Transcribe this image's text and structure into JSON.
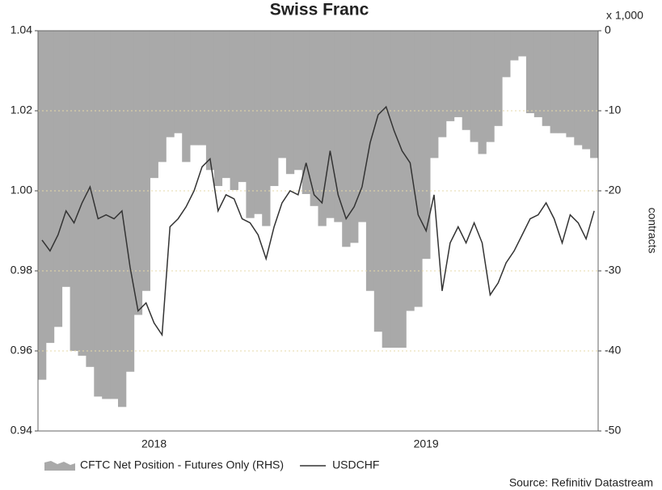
{
  "chart_data": {
    "type": "combo",
    "title": "Swiss Franc",
    "y2unit": "x 1,000",
    "y2label": "contracts",
    "source": "Source: Refinitiv Datastream",
    "categories": [
      null,
      null,
      null,
      null,
      null,
      null,
      null,
      null,
      null,
      null,
      null,
      null,
      null,
      null,
      "2018",
      null,
      null,
      null,
      null,
      null,
      null,
      null,
      null,
      null,
      null,
      null,
      null,
      null,
      null,
      null,
      null,
      null,
      null,
      null,
      null,
      null,
      null,
      null,
      null,
      null,
      null,
      null,
      null,
      null,
      null,
      null,
      null,
      null,
      "2019",
      null,
      null,
      null,
      null,
      null,
      null,
      null,
      null,
      null,
      null,
      null,
      null,
      null,
      null,
      null,
      null,
      null,
      null,
      null,
      null,
      null
    ],
    "ylim": [
      0.94,
      1.04
    ],
    "yticks": [
      0.94,
      0.96,
      0.98,
      {
        "value": 1,
        "label": "1.00"
      },
      1.02,
      1.04
    ],
    "y2lim": [
      -50,
      0
    ],
    "y2ticks": [
      -50,
      -40,
      -30,
      -20,
      -10,
      0
    ],
    "grid": true,
    "series": [
      {
        "name": "CFTC Net Position - Futures Only (RHS)",
        "type": "area",
        "axis": "y2",
        "color": "#a9a9a9",
        "values": [
          -43.6,
          -39,
          -37,
          -32,
          -40,
          -40.6,
          -42,
          -45.7,
          -46,
          -46,
          -47,
          -42.6,
          -35.5,
          -32.5,
          -18.4,
          -16.4,
          -13.3,
          -12.8,
          -16.4,
          -14.3,
          -14.3,
          -17.4,
          -19.4,
          -18.4,
          -19.9,
          -18.9,
          -23.4,
          -22.9,
          -24.4,
          -19.4,
          -15.9,
          -17.9,
          -17.4,
          -20.4,
          -21.9,
          -24.4,
          -23.4,
          -23.9,
          -27,
          -26.5,
          -23.9,
          -32.5,
          -37.6,
          -39.6,
          -39.6,
          -39.6,
          -35,
          -34.5,
          -28.5,
          -15.9,
          -13.3,
          -11.3,
          -10.8,
          -12.4,
          -13.9,
          -15.4,
          -13.9,
          -11.9,
          -5.8,
          -3.7,
          -3.2,
          -10.3,
          -10.8,
          -11.9,
          -12.8,
          -12.8,
          -13.3,
          -14.3,
          -14.8,
          -15.9
        ]
      },
      {
        "name": "USDCHF",
        "type": "line",
        "axis": "y",
        "color": "#333333",
        "values": [
          0.9877,
          0.985,
          0.989,
          0.995,
          0.992,
          0.997,
          1.001,
          0.993,
          0.994,
          0.993,
          0.995,
          0.981,
          0.97,
          0.972,
          0.967,
          0.964,
          0.991,
          0.993,
          0.996,
          1.0,
          1.006,
          1.008,
          0.995,
          0.999,
          0.998,
          0.993,
          0.992,
          0.989,
          0.983,
          0.991,
          0.997,
          1.0,
          0.999,
          1.007,
          0.999,
          0.997,
          1.01,
          0.999,
          0.993,
          0.996,
          1.001,
          1.012,
          1.019,
          1.021,
          1.015,
          1.01,
          1.007,
          0.994,
          0.99,
          0.999,
          0.975,
          0.987,
          0.991,
          0.987,
          0.992,
          0.987,
          0.974,
          0.977,
          0.982,
          0.985,
          0.989,
          0.993,
          0.994,
          0.997,
          0.993,
          0.987,
          0.994,
          0.992,
          0.988,
          0.995
        ]
      }
    ]
  }
}
